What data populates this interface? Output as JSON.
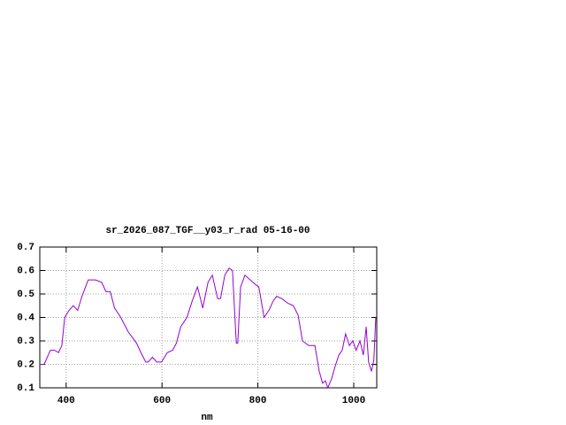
{
  "chart_data": {
    "type": "line",
    "title": "sr_2026_087_TGF__y03_r_rad 05-16-00",
    "xlabel": "nm",
    "color": "#9400d3",
    "grid": true,
    "xlim": [
      345,
      1048
    ],
    "ylim": [
      0.1,
      0.7
    ],
    "xticks": [
      400,
      600,
      800,
      1000
    ],
    "yticks": [
      0.1,
      0.2,
      0.3,
      0.4,
      0.5,
      0.6,
      0.7
    ],
    "x": [
      345,
      354,
      367,
      376,
      384,
      391,
      397,
      406,
      415,
      424,
      433,
      446,
      461,
      474,
      483,
      492,
      501,
      514,
      529,
      547,
      556,
      566,
      571,
      580,
      589,
      599,
      611,
      622,
      630,
      639,
      652,
      663,
      674,
      685,
      696,
      705,
      716,
      722,
      731,
      740,
      747,
      755,
      758,
      764,
      773,
      784,
      795,
      802,
      813,
      823,
      832,
      839,
      850,
      863,
      874,
      884,
      893,
      906,
      919,
      928,
      935,
      941,
      946,
      954,
      961,
      969,
      976,
      983,
      991,
      998,
      1005,
      1013,
      1020,
      1026,
      1031,
      1037,
      1042,
      1046
    ],
    "values": [
      0.2,
      0.2,
      0.26,
      0.26,
      0.25,
      0.28,
      0.4,
      0.43,
      0.45,
      0.43,
      0.49,
      0.56,
      0.56,
      0.55,
      0.51,
      0.51,
      0.44,
      0.4,
      0.34,
      0.29,
      0.25,
      0.21,
      0.21,
      0.23,
      0.21,
      0.21,
      0.25,
      0.26,
      0.29,
      0.36,
      0.4,
      0.47,
      0.53,
      0.44,
      0.55,
      0.58,
      0.48,
      0.48,
      0.58,
      0.61,
      0.6,
      0.29,
      0.29,
      0.53,
      0.58,
      0.56,
      0.54,
      0.53,
      0.4,
      0.43,
      0.47,
      0.49,
      0.48,
      0.46,
      0.45,
      0.41,
      0.3,
      0.28,
      0.28,
      0.17,
      0.12,
      0.13,
      0.1,
      0.14,
      0.19,
      0.24,
      0.26,
      0.33,
      0.28,
      0.3,
      0.26,
      0.3,
      0.24,
      0.36,
      0.21,
      0.17,
      0.22,
      0.4
    ]
  }
}
